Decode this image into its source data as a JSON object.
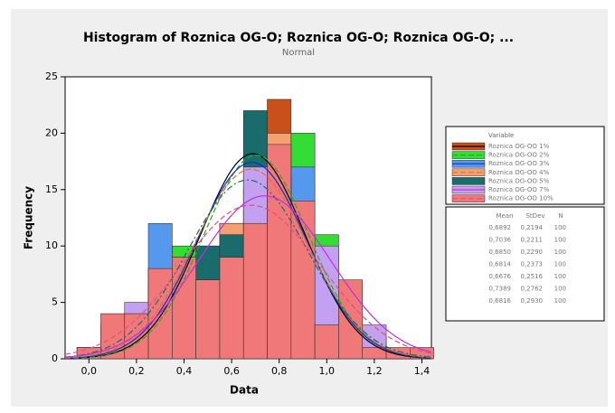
{
  "chart_data": {
    "type": "histogram",
    "title": "Histogram of Roznica OG-O; Roznica OG-O; Roznica OG-O; ...",
    "subtitle": "Normal",
    "x_label": "Data",
    "y_label": "Frequency",
    "legend_title": "Variable",
    "stats_columns": [
      "Mean",
      "StDev",
      "N"
    ],
    "bins": [
      -0.05,
      0.05,
      0.15,
      0.25,
      0.35,
      0.45,
      0.55,
      0.65,
      0.75,
      0.85,
      0.95,
      1.05,
      1.15,
      1.25,
      1.35,
      1.45
    ],
    "xlim": [
      -0.1,
      1.44
    ],
    "ylim": [
      0,
      25
    ],
    "xticks": [
      {
        "value": 0,
        "label": "0,0"
      },
      {
        "value": 0.2,
        "label": "0,2"
      },
      {
        "value": 0.4,
        "label": "0,4"
      },
      {
        "value": 0.6,
        "label": "0,6"
      },
      {
        "value": 0.8,
        "label": "0,8"
      },
      {
        "value": 1.0,
        "label": "1,0"
      },
      {
        "value": 1.2,
        "label": "1,2"
      },
      {
        "value": 1.4,
        "label": "1,4"
      }
    ],
    "yticks": [
      0,
      5,
      10,
      15,
      20,
      25
    ],
    "series": [
      {
        "name": "Roznica OG-OO 1%",
        "color": "#c8501a",
        "line_color": "#000000",
        "line_style": "solid",
        "values": [
          0,
          1,
          2,
          8,
          9,
          10,
          12,
          15,
          23,
          12,
          4,
          3,
          1,
          0,
          0
        ],
        "mean": {
          "value": 0.6892,
          "label": "0,6892"
        },
        "stdev": {
          "value": 0.2194,
          "label": "0,2194"
        },
        "n": 100
      },
      {
        "name": "Roznica OG-OO 2%",
        "color": "#33dd33",
        "line_color": "#20b020",
        "line_style": "dashed",
        "values": [
          0,
          2,
          3,
          8,
          10,
          9,
          8,
          12,
          12,
          20,
          11,
          4,
          1,
          0,
          0
        ],
        "mean": {
          "value": 0.7036,
          "label": "0,7036"
        },
        "stdev": {
          "value": 0.2211,
          "label": "0,2211"
        },
        "n": 100
      },
      {
        "name": "Roznica OG-OO 3%",
        "color": "#5599ee",
        "line_color": "#1030d0",
        "line_style": "solid",
        "values": [
          0,
          1,
          3,
          12,
          9,
          8,
          10,
          21,
          13,
          17,
          3,
          2,
          1,
          0,
          0
        ],
        "mean": {
          "value": 0.685,
          "label": "0,6850"
        },
        "stdev": {
          "value": 0.229,
          "label": "0,2290"
        },
        "n": 100
      },
      {
        "name": "Roznica OG-OO 4%",
        "color": "#f5a070",
        "line_color": "#e07020",
        "line_style": "dashed",
        "values": [
          1,
          3,
          4,
          6,
          8,
          7,
          12,
          15,
          20,
          12,
          6,
          4,
          2,
          0,
          0
        ],
        "mean": {
          "value": 0.6814,
          "label": "0,6814"
        },
        "stdev": {
          "value": 0.2373,
          "label": "0,2373"
        },
        "n": 100
      },
      {
        "name": "Roznica OG-OO 5%",
        "color": "#1a6b6b",
        "line_color": "#1a6b6b",
        "line_style": "dashdot",
        "values": [
          0,
          2,
          3,
          7,
          8,
          10,
          11,
          22,
          16,
          10,
          6,
          3,
          2,
          0,
          0
        ],
        "mean": {
          "value": 0.6676,
          "label": "0,6676"
        },
        "stdev": {
          "value": 0.2516,
          "label": "0,2516"
        },
        "n": 100
      },
      {
        "name": "Roznica OG-OO 7%",
        "color": "#c4a0f0",
        "line_color": "#c030e0",
        "line_style": "solid",
        "values": [
          1,
          3,
          5,
          6,
          8,
          7,
          9,
          17,
          16,
          12,
          10,
          3,
          3,
          0,
          0
        ],
        "mean": {
          "value": 0.7389,
          "label": "0,7389"
        },
        "stdev": {
          "value": 0.2762,
          "label": "0,2762"
        },
        "n": 100
      },
      {
        "name": "Roznica OG-OO 10%",
        "color": "#f07878",
        "line_color": "#e05080",
        "line_style": "dashed",
        "values": [
          1,
          4,
          4,
          8,
          9,
          7,
          9,
          12,
          19,
          14,
          3,
          7,
          1,
          1,
          1
        ],
        "mean": {
          "value": 0.6816,
          "label": "0,6816"
        },
        "stdev": {
          "value": 0.293,
          "label": "0,2930"
        },
        "n": 100
      }
    ]
  }
}
